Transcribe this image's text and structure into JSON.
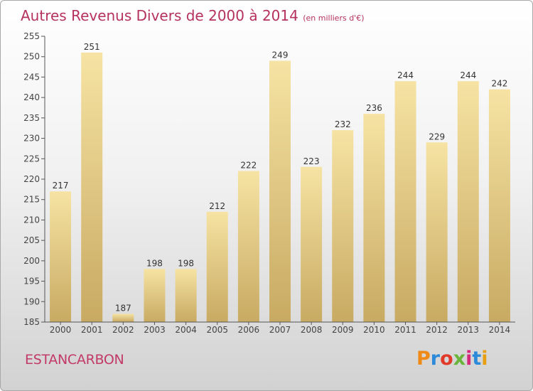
{
  "header": {
    "title": "Autres Revenus Divers de 2000 à 2014",
    "subtitle": "(en milliers d'€)"
  },
  "footer": {
    "commune": "ESTANCARBON",
    "logo_text": "Proxiti"
  },
  "colors": {
    "title": "#b5325e",
    "bar_top": "#f6e3a3",
    "bar_bottom": "#c8aa62",
    "logo_letters": [
      "#f08a16",
      "#2c8ad8",
      "#e23a2a",
      "#6ab43a",
      "#d6287a",
      "#2c8ad8",
      "#e8a012"
    ]
  },
  "chart_data": {
    "type": "bar",
    "categories": [
      "2000",
      "2001",
      "2002",
      "2003",
      "2004",
      "2005",
      "2006",
      "2007",
      "2008",
      "2009",
      "2010",
      "2011",
      "2012",
      "2013",
      "2014"
    ],
    "values": [
      217,
      251,
      187,
      198,
      198,
      212,
      222,
      249,
      223,
      232,
      236,
      244,
      229,
      244,
      242
    ],
    "title": "Autres Revenus Divers de 2000 à 2014",
    "subtitle": "(en milliers d'€)",
    "xlabel": "",
    "ylabel": "",
    "ylim": [
      185,
      255
    ],
    "yticks": [
      185,
      190,
      195,
      200,
      205,
      210,
      215,
      220,
      225,
      230,
      235,
      240,
      245,
      250,
      255
    ],
    "grid": false,
    "data_labels": true
  }
}
